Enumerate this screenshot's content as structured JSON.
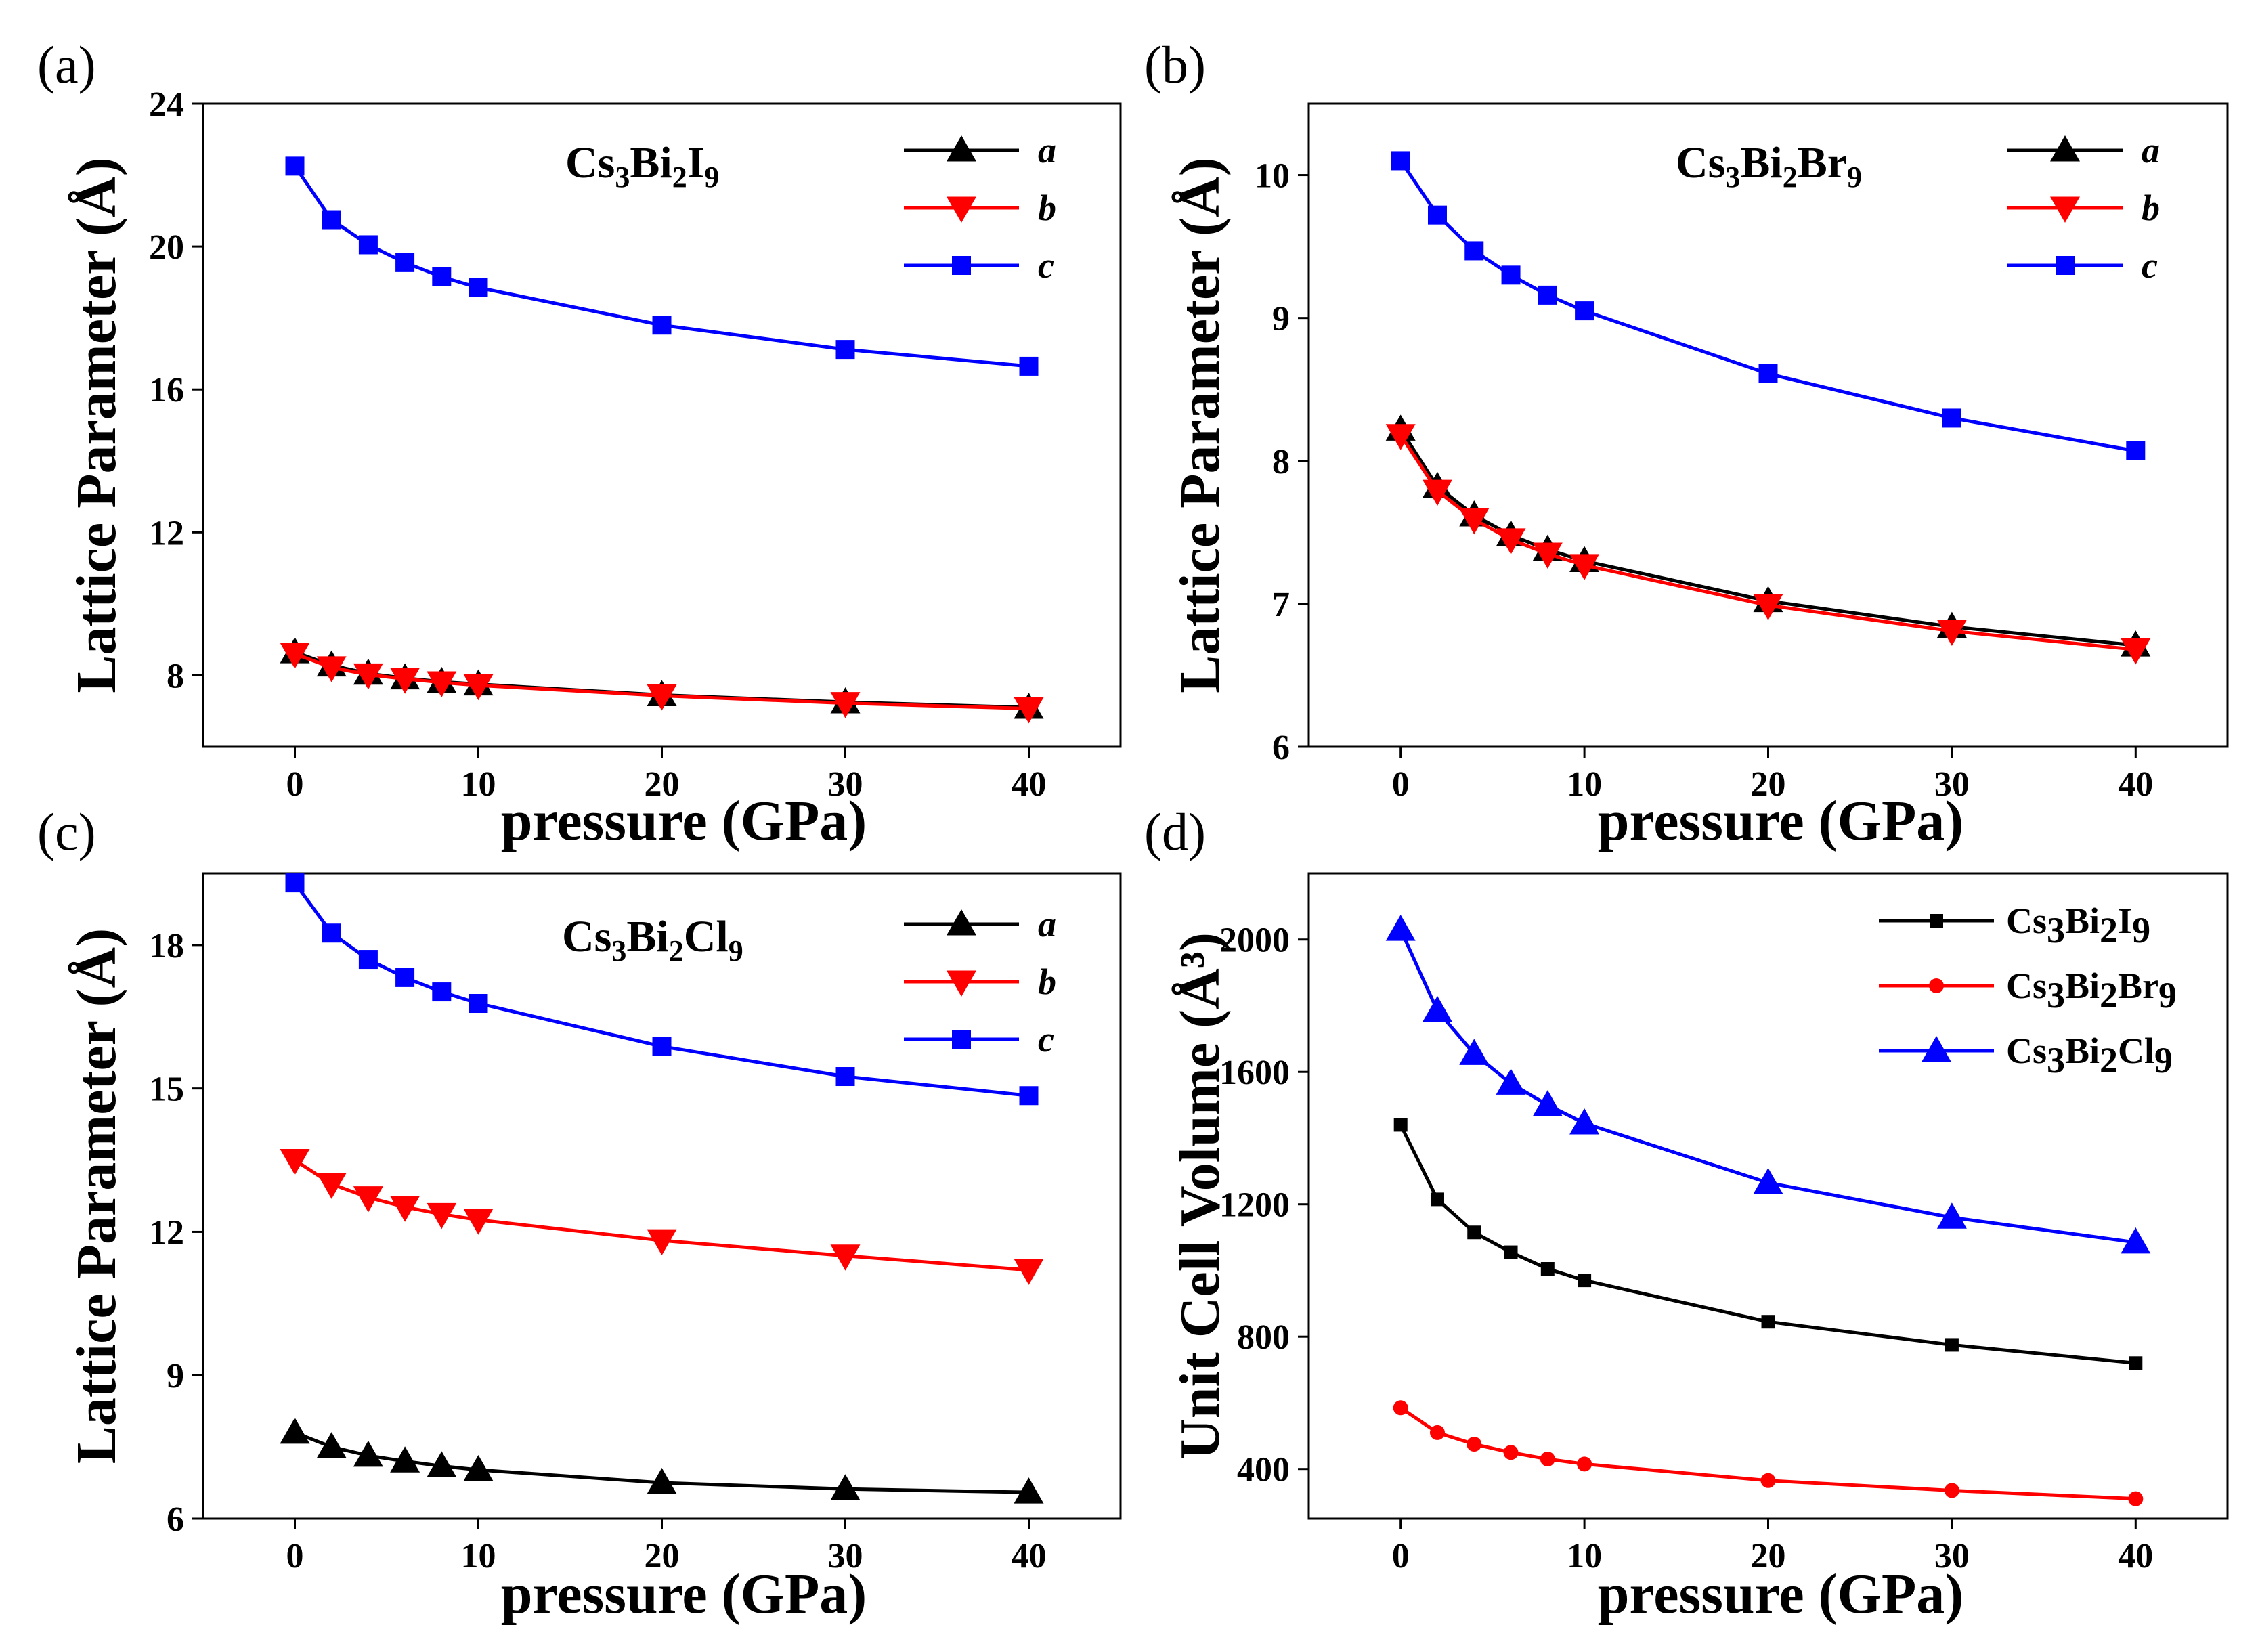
{
  "chart_data": [
    {
      "panel": "(a)",
      "type": "line",
      "xlabel": "pressure (GPa)",
      "ylabel": "Lattice Parameter (Å)",
      "ylabel_main": "Lattice Parameter",
      "ylabel_unit": "(Å)",
      "compound": {
        "parts": [
          "Cs",
          "3",
          "Bi",
          "2",
          "I",
          "9"
        ]
      },
      "xlim": [
        -5,
        45
      ],
      "ylim": [
        6,
        24
      ],
      "xticks": [
        0,
        10,
        20,
        30,
        40
      ],
      "yticks": [
        8,
        12,
        16,
        20,
        24
      ],
      "legend_position": "top-right",
      "x": [
        0,
        2,
        4,
        6,
        8,
        10,
        20,
        30,
        40
      ],
      "series": [
        {
          "name": "a",
          "color": "#000000",
          "marker": "triangle-up",
          "values": [
            8.65,
            8.28,
            8.05,
            7.92,
            7.82,
            7.75,
            7.45,
            7.25,
            7.1
          ]
        },
        {
          "name": "b",
          "color": "#ff0000",
          "marker": "triangle-down",
          "values": [
            8.6,
            8.22,
            8.02,
            7.9,
            7.8,
            7.72,
            7.43,
            7.22,
            7.07
          ]
        },
        {
          "name": "c",
          "color": "#0000ff",
          "marker": "square",
          "values": [
            22.25,
            20.75,
            20.05,
            19.55,
            19.15,
            18.85,
            17.8,
            17.12,
            16.65
          ]
        }
      ]
    },
    {
      "panel": "(b)",
      "type": "line",
      "xlabel": "pressure (GPa)",
      "ylabel": "Lattice Parameter (Å)",
      "ylabel_main": "Lattice Parameter",
      "ylabel_unit": "(Å)",
      "compound": {
        "parts": [
          "Cs",
          "3",
          "Bi",
          "2",
          "Br",
          "9"
        ]
      },
      "xlim": [
        -5,
        45
      ],
      "ylim": [
        6,
        10.5
      ],
      "xticks": [
        0,
        10,
        20,
        30,
        40
      ],
      "yticks": [
        6,
        7,
        8,
        9,
        10
      ],
      "legend_position": "top-right",
      "x": [
        0,
        2,
        4,
        6,
        8,
        10,
        20,
        30,
        40
      ],
      "series": [
        {
          "name": "a",
          "color": "#000000",
          "marker": "triangle-up",
          "values": [
            8.22,
            7.82,
            7.62,
            7.48,
            7.38,
            7.3,
            7.02,
            6.84,
            6.71
          ]
        },
        {
          "name": "b",
          "color": "#ff0000",
          "marker": "triangle-down",
          "values": [
            8.18,
            7.79,
            7.59,
            7.45,
            7.35,
            7.27,
            6.99,
            6.81,
            6.68
          ]
        },
        {
          "name": "c",
          "color": "#0000ff",
          "marker": "square",
          "values": [
            10.1,
            9.72,
            9.47,
            9.3,
            9.16,
            9.05,
            8.61,
            8.3,
            8.07
          ]
        }
      ]
    },
    {
      "panel": "(c)",
      "type": "line",
      "xlabel": "pressure (GPa)",
      "ylabel": "Lattice Parameter (Å)",
      "ylabel_main": "Lattice Parameter",
      "ylabel_unit": "(Å)",
      "compound": {
        "parts": [
          "Cs",
          "3",
          "Bi",
          "2",
          "Cl",
          "9"
        ]
      },
      "xlim": [
        -5,
        45
      ],
      "ylim": [
        6,
        19.5
      ],
      "xticks": [
        0,
        10,
        20,
        30,
        40
      ],
      "yticks": [
        6,
        9,
        12,
        15,
        18
      ],
      "legend_position": "top-right",
      "x": [
        0,
        2,
        4,
        6,
        8,
        10,
        20,
        30,
        40
      ],
      "series": [
        {
          "name": "a",
          "color": "#000000",
          "marker": "triangle-up",
          "values": [
            7.8,
            7.5,
            7.32,
            7.2,
            7.1,
            7.02,
            6.75,
            6.62,
            6.55
          ]
        },
        {
          "name": "b",
          "color": "#ff0000",
          "marker": "triangle-down",
          "values": [
            13.5,
            13.0,
            12.72,
            12.52,
            12.37,
            12.25,
            11.82,
            11.5,
            11.2
          ]
        },
        {
          "name": "c",
          "color": "#0000ff",
          "marker": "square",
          "values": [
            19.3,
            18.25,
            17.7,
            17.32,
            17.02,
            16.78,
            15.88,
            15.25,
            14.85
          ]
        }
      ]
    },
    {
      "panel": "(d)",
      "type": "line",
      "xlabel": "pressure (GPa)",
      "ylabel": "Unit Cell Volume (Å³)",
      "ylabel_main": "Unit Cell Volume",
      "ylabel_unit": "(Å³)",
      "xlim": [
        -5,
        45
      ],
      "ylim": [
        250,
        2200
      ],
      "xticks": [
        0,
        10,
        20,
        30,
        40
      ],
      "yticks": [
        400,
        800,
        1200,
        1600,
        2000
      ],
      "legend_position": "top-right",
      "x": [
        0,
        2,
        4,
        6,
        8,
        10,
        20,
        30,
        40
      ],
      "series": [
        {
          "name": "Cs3Bi2I9",
          "label_parts": [
            "Cs",
            "3",
            "Bi",
            "2",
            "I",
            "9"
          ],
          "color": "#000000",
          "marker": "small-square",
          "values": [
            1440,
            1215,
            1115,
            1055,
            1005,
            970,
            845,
            775,
            720
          ]
        },
        {
          "name": "Cs3Bi2Br9",
          "label_parts": [
            "Cs",
            "3",
            "Bi",
            "2",
            "Br",
            "9"
          ],
          "color": "#ff0000",
          "marker": "circle",
          "values": [
            585,
            510,
            475,
            450,
            430,
            415,
            365,
            335,
            310
          ]
        },
        {
          "name": "Cs3Bi2Cl9",
          "label_parts": [
            "Cs",
            "3",
            "Bi",
            "2",
            "Cl",
            "9"
          ],
          "color": "#0000ff",
          "marker": "triangle-up",
          "values": [
            2030,
            1785,
            1655,
            1565,
            1500,
            1445,
            1265,
            1160,
            1085
          ]
        }
      ]
    }
  ]
}
